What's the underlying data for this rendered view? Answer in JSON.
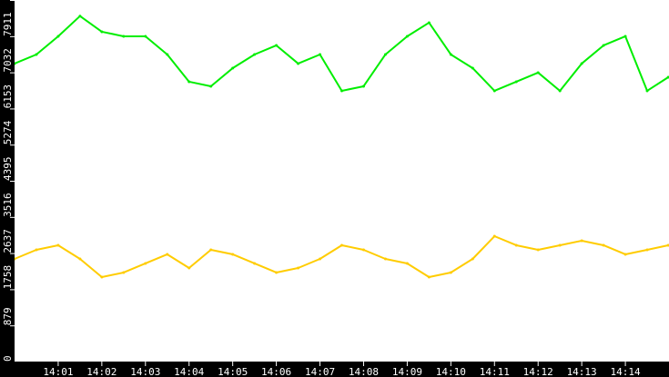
{
  "chart_data": {
    "type": "line",
    "title": "",
    "xlabel": "",
    "ylabel": "",
    "background": "#ffffff",
    "frame_color": "#000000",
    "grid": false,
    "ylim": [
      0,
      8791
    ],
    "yticks": [
      "0",
      "879",
      "1758",
      "2637",
      "3516",
      "4395",
      "5274",
      "6153",
      "7032",
      "7911",
      "8791"
    ],
    "xlim": [
      "14:00:00",
      "14:15:00"
    ],
    "xticks": [
      "14:01",
      "14:02",
      "14:03",
      "14:04",
      "14:05",
      "14:06",
      "14:07",
      "14:08",
      "14:09",
      "14:10",
      "14:11",
      "14:12",
      "14:13",
      "14:14"
    ],
    "x": [
      "14:00:00",
      "14:00:30",
      "14:01:00",
      "14:01:30",
      "14:02:00",
      "14:02:30",
      "14:03:00",
      "14:03:30",
      "14:04:00",
      "14:04:30",
      "14:05:00",
      "14:05:30",
      "14:06:00",
      "14:06:30",
      "14:07:00",
      "14:07:30",
      "14:08:00",
      "14:08:30",
      "14:09:00",
      "14:09:30",
      "14:10:00",
      "14:10:30",
      "14:11:00",
      "14:11:30",
      "14:12:00",
      "14:12:30",
      "14:13:00",
      "14:13:30",
      "14:14:00",
      "14:14:30",
      "14:14:59"
    ],
    "series": [
      {
        "color": "#00ee00",
        "values": [
          7246,
          7466,
          7908,
          8400,
          8019,
          7908,
          7908,
          7466,
          6804,
          6693,
          7135,
          7466,
          7687,
          7246,
          7466,
          6583,
          6693,
          7466,
          7908,
          8240,
          7466,
          7135,
          6583,
          6804,
          7025,
          6583,
          7246,
          7687,
          7908,
          6583,
          6914
        ]
      },
      {
        "color": "#ffcc00",
        "values": [
          2496,
          2717,
          2828,
          2496,
          2054,
          2165,
          2386,
          2607,
          2275,
          2717,
          2607,
          2386,
          2165,
          2275,
          2496,
          2828,
          2717,
          2496,
          2386,
          2054,
          2165,
          2496,
          3048,
          2828,
          2717,
          2828,
          2938,
          2828,
          2607,
          2717,
          2828
        ]
      }
    ]
  }
}
